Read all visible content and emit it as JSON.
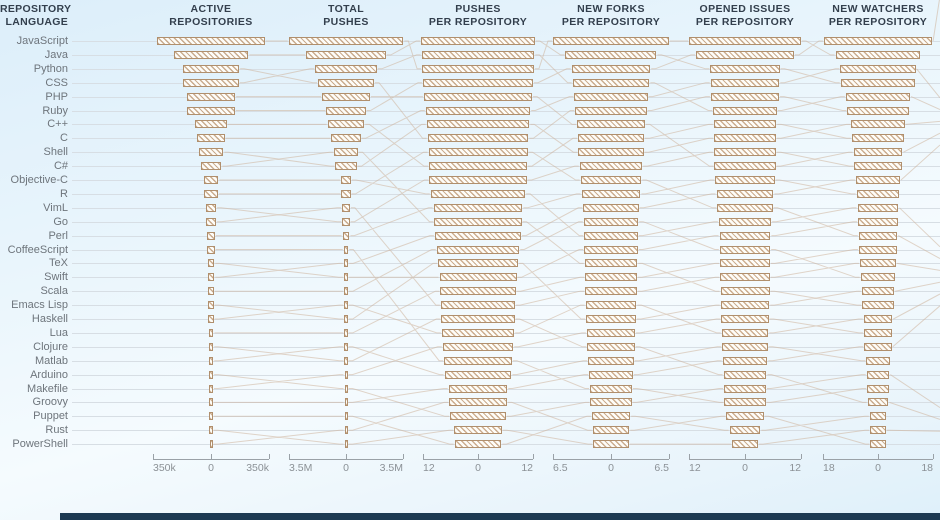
{
  "left_header": {
    "line1": "REPOSITORY",
    "line2": "LANGUAGE"
  },
  "languages": [
    "JavaScript",
    "Java",
    "Python",
    "CSS",
    "PHP",
    "Ruby",
    "C++",
    "C",
    "Shell",
    "C#",
    "Objective-C",
    "R",
    "VimL",
    "Go",
    "Perl",
    "CoffeeScript",
    "TeX",
    "Swift",
    "Scala",
    "Emacs Lisp",
    "Haskell",
    "Lua",
    "Clojure",
    "Matlab",
    "Arduino",
    "Makefile",
    "Groovy",
    "Puppet",
    "Rust",
    "PowerShell"
  ],
  "colors": {
    "bar_border": "#b08f6d",
    "bar_stripe": "#bf9063",
    "connector": "#cdb39a",
    "footer": "#1d3a52",
    "header_text": "#333f4d",
    "label_text": "#6e757c",
    "axis_text": "#8b9196",
    "axis_line": "#9aa1a7",
    "gridline": "#d7dee4"
  },
  "chart_data": {
    "type": "bar",
    "variant": "centered-horizontal-small-multiples-with-rank-connectors",
    "grid": "horizontal row guides on",
    "legend": "none",
    "categories": [
      "JavaScript",
      "Java",
      "Python",
      "CSS",
      "PHP",
      "Ruby",
      "C++",
      "C",
      "Shell",
      "C#",
      "Objective-C",
      "R",
      "VimL",
      "Go",
      "Perl",
      "CoffeeScript",
      "TeX",
      "Swift",
      "Scala",
      "Emacs Lisp",
      "Haskell",
      "Lua",
      "Clojure",
      "Matlab",
      "Arduino",
      "Makefile",
      "Groovy",
      "Puppet",
      "Rust",
      "PowerShell"
    ],
    "columns": [
      {
        "header": "ACTIVE\nREPOSITORIES",
        "axis_tick_labels": [
          "350k",
          "0",
          "350k"
        ],
        "axis_max": 350000,
        "values": [
          325000,
          226000,
          170000,
          168000,
          146000,
          144000,
          95000,
          83000,
          75000,
          63000,
          45000,
          42000,
          31000,
          31000,
          23000,
          22000,
          20500,
          20000,
          18000,
          17000,
          16000,
          15000,
          14000,
          13500,
          13000,
          12000,
          11500,
          11000,
          10000,
          8000
        ]
      },
      {
        "header": "TOTAL\nPUSHES",
        "axis_tick_labels": [
          "3.5M",
          "0",
          "3.5M"
        ],
        "axis_max": 3500000,
        "values": [
          3520000,
          2450000,
          1890000,
          1720000,
          1470000,
          1200000,
          1130000,
          900000,
          710000,
          650000,
          310000,
          280000,
          240000,
          220000,
          210000,
          140000,
          135000,
          130000,
          120000,
          115000,
          110000,
          105000,
          100000,
          95000,
          92000,
          90000,
          85000,
          82000,
          80000,
          60000
        ]
      },
      {
        "header": "PUSHES\nPER REPOSITORY",
        "axis_tick_labels": [
          "12",
          "0",
          "12"
        ],
        "axis_max": 12,
        "values": [
          12.4,
          12.3,
          12.2,
          12.0,
          11.8,
          11.4,
          11.2,
          11.0,
          10.8,
          10.7,
          10.6,
          10.3,
          9.7,
          9.5,
          9.4,
          9.0,
          8.7,
          8.4,
          8.2,
          8.1,
          8.0,
          7.9,
          7.7,
          7.4,
          7.3,
          6.4,
          6.3,
          6.1,
          5.2,
          5.1
        ]
      },
      {
        "header": "NEW FORKS\nPER REPOSITORY",
        "axis_tick_labels": [
          "6.5",
          "0",
          "6.5"
        ],
        "axis_max": 6.5,
        "values": [
          6.5,
          5.1,
          4.4,
          4.3,
          4.1,
          4.0,
          3.8,
          3.7,
          3.65,
          3.5,
          3.4,
          3.3,
          3.1,
          3.05,
          3.0,
          3.0,
          2.95,
          2.9,
          2.9,
          2.85,
          2.8,
          2.7,
          2.65,
          2.55,
          2.45,
          2.35,
          2.3,
          2.15,
          2.05,
          2.0
        ]
      },
      {
        "header": "OPENED ISSUES\nPER REPOSITORY",
        "axis_tick_labels": [
          "12",
          "0",
          "12"
        ],
        "axis_max": 12,
        "values": [
          12.0,
          10.5,
          7.4,
          7.35,
          7.3,
          6.8,
          6.7,
          6.65,
          6.6,
          6.55,
          6.35,
          6.1,
          5.9,
          5.6,
          5.45,
          5.4,
          5.35,
          5.3,
          5.25,
          5.2,
          5.05,
          5.0,
          4.85,
          4.8,
          4.6,
          4.5,
          4.4,
          4.0,
          3.3,
          2.8
        ]
      },
      {
        "header": "NEW WATCHERS\nPER REPOSITORY",
        "axis_tick_labels": [
          "18",
          "0",
          "18"
        ],
        "axis_max": 18,
        "values": [
          17.7,
          13.9,
          12.3,
          12.2,
          10.5,
          10.0,
          8.7,
          8.6,
          8.0,
          7.7,
          7.2,
          7.0,
          6.7,
          6.5,
          6.3,
          6.25,
          5.9,
          5.7,
          5.3,
          5.2,
          4.7,
          4.6,
          4.5,
          3.8,
          3.7,
          3.5,
          3.4,
          2.7,
          2.6,
          2.5
        ]
      }
    ],
    "connector_rank_maps": [
      [
        0,
        1,
        3,
        2,
        4,
        5,
        6,
        7,
        9,
        8,
        10,
        11,
        13,
        12,
        14,
        15,
        17,
        16,
        18,
        20,
        19,
        21,
        23,
        22,
        25,
        24,
        26,
        27,
        29,
        28
      ],
      [
        2,
        0,
        1,
        7,
        4,
        3,
        9,
        5,
        13,
        6,
        11,
        8,
        19,
        10,
        12,
        23,
        14,
        17,
        15,
        21,
        16,
        18,
        24,
        20,
        22,
        27,
        25,
        29,
        26,
        28
      ],
      [
        1,
        3,
        0,
        2,
        6,
        4,
        8,
        5,
        10,
        7,
        9,
        14,
        11,
        16,
        12,
        13,
        20,
        15,
        17,
        18,
        22,
        19,
        21,
        25,
        23,
        24,
        28,
        26,
        29,
        27
      ],
      [
        0,
        2,
        1,
        5,
        3,
        4,
        9,
        6,
        7,
        8,
        12,
        10,
        11,
        15,
        13,
        14,
        18,
        16,
        17,
        21,
        19,
        20,
        24,
        22,
        23,
        26,
        25,
        28,
        27,
        29
      ],
      [
        1,
        0,
        3,
        2,
        5,
        4,
        7,
        6,
        9,
        8,
        11,
        10,
        14,
        12,
        13,
        17,
        15,
        16,
        19,
        18,
        21,
        20,
        23,
        22,
        26,
        24,
        25,
        29,
        27,
        28
      ]
    ]
  }
}
